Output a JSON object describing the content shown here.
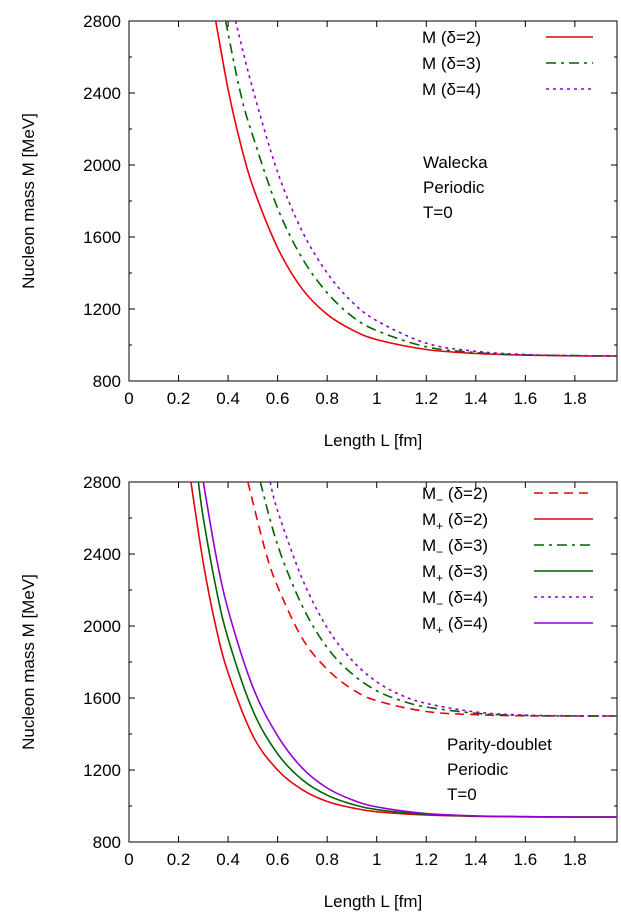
{
  "chart_data": [
    {
      "type": "line",
      "xlabel": "Length L [fm]",
      "ylabel": "Nucleon mass M [MeV]",
      "xlim": [
        0,
        1.97
      ],
      "ylim": [
        800,
        2800
      ],
      "xticks": [
        "0",
        "0.2",
        "0.4",
        "0.6",
        "0.8",
        "1",
        "1.2",
        "1.4",
        "1.6",
        "1.8"
      ],
      "yticks": [
        "800",
        "1200",
        "1600",
        "2000",
        "2400",
        "2800"
      ],
      "legend_position": "top-right",
      "annotation": [
        "Walecka",
        "Periodic",
        "T=0"
      ],
      "series": [
        {
          "name": "M (δ=2)",
          "color": "#e8000b",
          "dash": "solid",
          "x": [
            0.35,
            0.4,
            0.45,
            0.5,
            0.6,
            0.7,
            0.8,
            0.9,
            1.0,
            1.2,
            1.4,
            1.6,
            1.8,
            1.97
          ],
          "y": [
            2800,
            2420,
            2120,
            1880,
            1540,
            1310,
            1170,
            1085,
            1030,
            975,
            953,
            944,
            940,
            939
          ]
        },
        {
          "name": "M (δ=3)",
          "color": "#006400",
          "dash": "dashdot",
          "x": [
            0.39,
            0.45,
            0.5,
            0.6,
            0.7,
            0.8,
            0.9,
            1.0,
            1.2,
            1.4,
            1.6,
            1.8,
            1.97
          ],
          "y": [
            2800,
            2400,
            2160,
            1760,
            1480,
            1290,
            1160,
            1080,
            990,
            958,
            945,
            941,
            939
          ]
        },
        {
          "name": "M (δ=4)",
          "color": "#9400d3",
          "dash": "dotted",
          "x": [
            0.43,
            0.5,
            0.6,
            0.7,
            0.8,
            0.9,
            1.0,
            1.2,
            1.4,
            1.6,
            1.8,
            1.97
          ],
          "y": [
            2800,
            2420,
            1960,
            1630,
            1400,
            1240,
            1135,
            1010,
            965,
            947,
            941,
            939
          ]
        }
      ]
    },
    {
      "type": "line",
      "xlabel": "Length L [fm]",
      "ylabel": "Nucleon mass M [MeV]",
      "xlim": [
        0,
        1.97
      ],
      "ylim": [
        800,
        2800
      ],
      "xticks": [
        "0",
        "0.2",
        "0.4",
        "0.6",
        "0.8",
        "1",
        "1.2",
        "1.4",
        "1.6",
        "1.8"
      ],
      "yticks": [
        "800",
        "1200",
        "1600",
        "2000",
        "2400",
        "2800"
      ],
      "legend_position": "top-right",
      "annotation": [
        "Parity-doublet",
        "Periodic",
        "T=0"
      ],
      "series": [
        {
          "name_main": "M",
          "name_sub": "−",
          "name_rest": " (δ=2)",
          "color": "#e8000b",
          "dash": "dashed",
          "x": [
            0.48,
            0.55,
            0.6,
            0.7,
            0.8,
            0.9,
            1.0,
            1.2,
            1.4,
            1.6,
            1.8,
            1.97
          ],
          "y": [
            2800,
            2420,
            2220,
            1930,
            1760,
            1650,
            1585,
            1525,
            1507,
            1501,
            1500,
            1500
          ]
        },
        {
          "name_main": "M",
          "name_sub": "+",
          "name_rest": " (δ=2)",
          "color": "#e8000b",
          "dash": "solid",
          "x": [
            0.25,
            0.3,
            0.35,
            0.4,
            0.5,
            0.6,
            0.7,
            0.8,
            0.9,
            1.0,
            1.2,
            1.4,
            1.6,
            1.8,
            1.97
          ],
          "y": [
            2800,
            2350,
            2000,
            1740,
            1390,
            1200,
            1090,
            1025,
            990,
            968,
            950,
            943,
            940,
            939,
            939
          ]
        },
        {
          "name_main": "M",
          "name_sub": "−",
          "name_rest": " (δ=3)",
          "color": "#006400",
          "dash": "dashdot",
          "x": [
            0.53,
            0.6,
            0.7,
            0.8,
            0.9,
            1.0,
            1.1,
            1.2,
            1.4,
            1.6,
            1.8,
            1.97
          ],
          "y": [
            2800,
            2450,
            2110,
            1880,
            1735,
            1640,
            1585,
            1550,
            1515,
            1503,
            1500,
            1500
          ]
        },
        {
          "name_main": "M",
          "name_sub": "+",
          "name_rest": " (δ=3)",
          "color": "#006400",
          "dash": "solid",
          "x": [
            0.28,
            0.3,
            0.35,
            0.4,
            0.5,
            0.6,
            0.7,
            0.8,
            0.9,
            1.0,
            1.2,
            1.4,
            1.6,
            1.8,
            1.97
          ],
          "y": [
            2800,
            2600,
            2220,
            1930,
            1530,
            1290,
            1145,
            1060,
            1010,
            980,
            953,
            944,
            940,
            939,
            939
          ]
        },
        {
          "name_main": "M",
          "name_sub": "−",
          "name_rest": " (δ=4)",
          "color": "#9400d3",
          "dash": "dotted",
          "x": [
            0.57,
            0.6,
            0.7,
            0.8,
            0.9,
            1.0,
            1.1,
            1.2,
            1.4,
            1.6,
            1.8,
            1.97
          ],
          "y": [
            2800,
            2640,
            2260,
            1990,
            1810,
            1690,
            1615,
            1570,
            1522,
            1505,
            1501,
            1500
          ]
        },
        {
          "name_main": "M",
          "name_sub": "+",
          "name_rest": " (δ=4)",
          "color": "#9400d3",
          "dash": "solid",
          "x": [
            0.3,
            0.35,
            0.4,
            0.5,
            0.6,
            0.7,
            0.8,
            0.9,
            1.0,
            1.2,
            1.4,
            1.6,
            1.8,
            1.97
          ],
          "y": [
            2800,
            2400,
            2090,
            1660,
            1390,
            1210,
            1100,
            1035,
            995,
            958,
            945,
            941,
            939,
            939
          ]
        }
      ]
    }
  ]
}
